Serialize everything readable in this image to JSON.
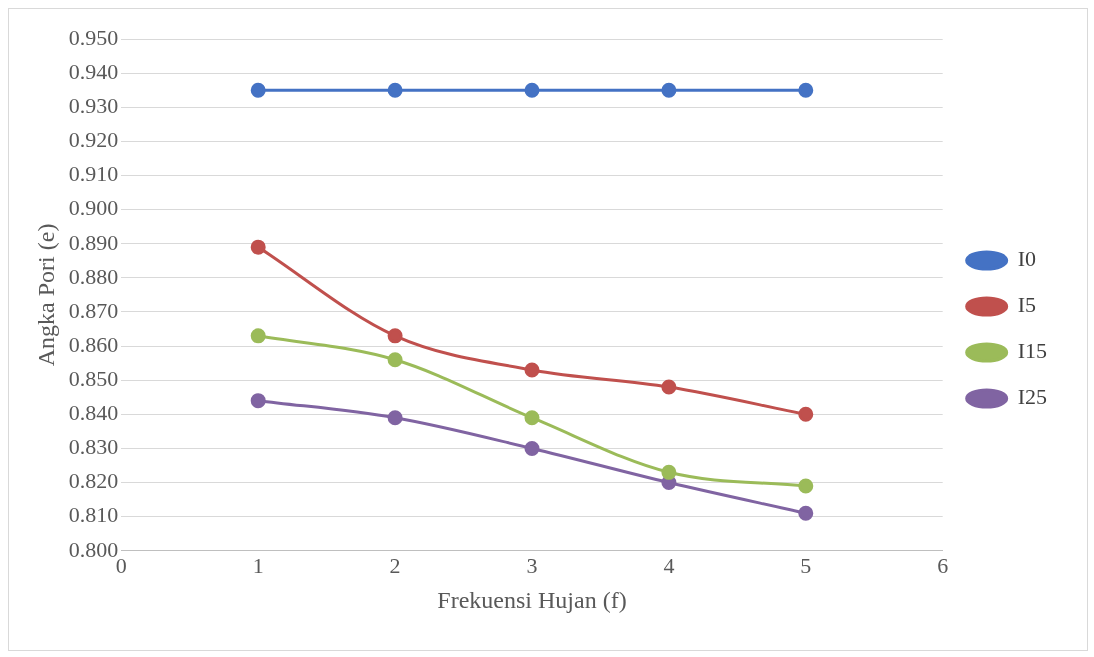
{
  "chart_data": {
    "type": "line",
    "xlabel": "Frekuensi Hujan (f)",
    "ylabel": "Angka Pori (e)",
    "x": [
      1,
      2,
      3,
      4,
      5
    ],
    "series": [
      {
        "name": "I0",
        "color": "#4472c4",
        "values": [
          0.935,
          0.935,
          0.935,
          0.935,
          0.935
        ]
      },
      {
        "name": "I5",
        "color": "#c0504d",
        "values": [
          0.889,
          0.863,
          0.853,
          0.848,
          0.84
        ]
      },
      {
        "name": "I15",
        "color": "#9bbb59",
        "values": [
          0.863,
          0.856,
          0.839,
          0.823,
          0.819
        ]
      },
      {
        "name": "I25",
        "color": "#8064a2",
        "values": [
          0.844,
          0.839,
          0.83,
          0.82,
          0.811
        ]
      }
    ],
    "xlim": [
      0,
      6
    ],
    "xticks": [
      0,
      1,
      2,
      3,
      4,
      5,
      6
    ],
    "ylim": [
      0.8,
      0.95
    ],
    "yticks": [
      {
        "value": 0.8,
        "label": "0.800"
      },
      {
        "value": 0.81,
        "label": "0.810"
      },
      {
        "value": 0.82,
        "label": "0.820"
      },
      {
        "value": 0.83,
        "label": "0.830"
      },
      {
        "value": 0.84,
        "label": "0.840"
      },
      {
        "value": 0.85,
        "label": "0.850"
      },
      {
        "value": 0.86,
        "label": "0.860"
      },
      {
        "value": 0.87,
        "label": "0.870"
      },
      {
        "value": 0.88,
        "label": "0.880"
      },
      {
        "value": 0.89,
        "label": "0.890"
      },
      {
        "value": 0.9,
        "label": "0.900"
      },
      {
        "value": 0.91,
        "label": "0.910"
      },
      {
        "value": 0.92,
        "label": "0.920"
      },
      {
        "value": 0.93,
        "label": "0.930"
      },
      {
        "value": 0.94,
        "label": "0.940"
      },
      {
        "value": 0.95,
        "label": "0.950"
      }
    ],
    "grid": "y",
    "legend": "right",
    "marker": "circle",
    "line_style": "solid"
  }
}
